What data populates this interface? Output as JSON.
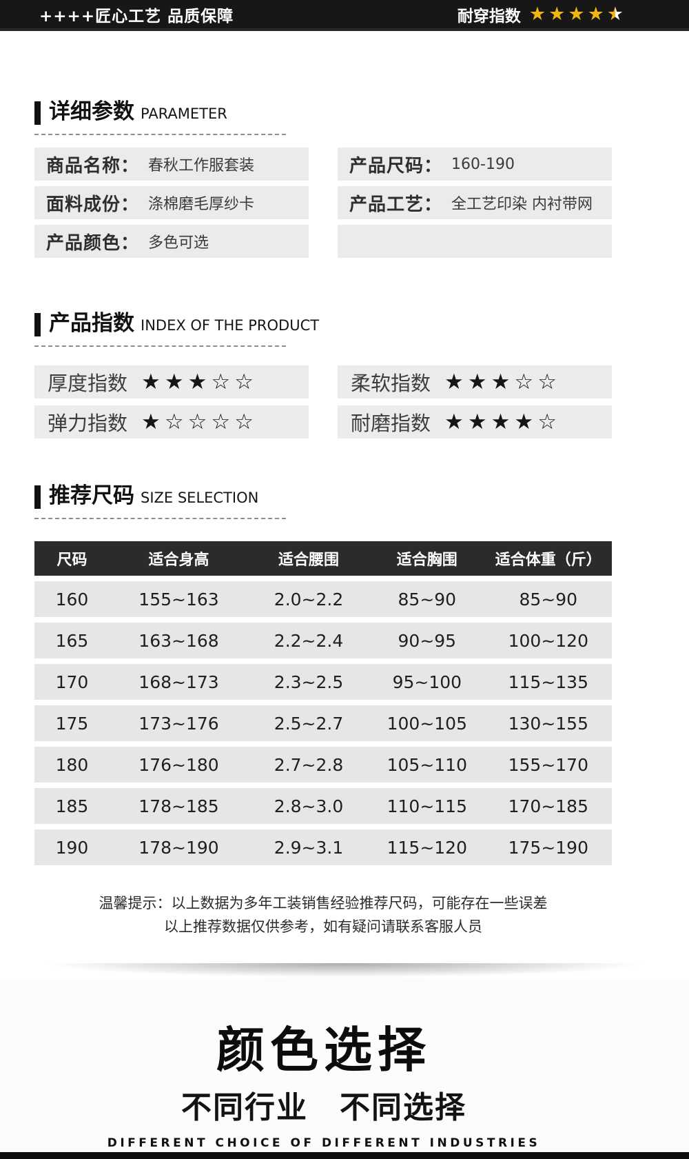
{
  "colors": {
    "star_gold": "#f2b50f",
    "star_black": "#161616",
    "topbar_bg": "#171717",
    "box_gray": "#ebebeb",
    "table_header_bg": "#2b2b2b"
  },
  "topbar": {
    "left_text": "++++匠心工艺 品质保障",
    "right_label": "耐穿指数",
    "rating": 4.5,
    "rating_max": 5
  },
  "sections": {
    "parameter": {
      "title": "详细参数",
      "subtitle": "PARAMETER",
      "fields": [
        {
          "label": "商品名称：",
          "value": "春秋工作服套装"
        },
        {
          "label": "产品尺码：",
          "value": "160-190"
        },
        {
          "label": "面料成份：",
          "value": "涤棉磨毛厚纱卡"
        },
        {
          "label": "产品工艺：",
          "value": "全工艺印染 内衬带网"
        },
        {
          "label": "产品颜色：",
          "value": "多色可选"
        }
      ]
    },
    "index": {
      "title": "产品指数",
      "subtitle": "INDEX OF THE PRODUCT",
      "metrics": [
        {
          "label": "厚度指数",
          "stars": 3,
          "max": 5
        },
        {
          "label": "柔软指数",
          "stars": 3,
          "max": 5
        },
        {
          "label": "弹力指数",
          "stars": 1,
          "max": 5
        },
        {
          "label": "耐磨指数",
          "stars": 4,
          "max": 5
        }
      ]
    },
    "size": {
      "title": "推荐尺码",
      "subtitle": "SIZE SELECTION",
      "table": {
        "headers": [
          "尺码",
          "适合身高",
          "适合腰围",
          "适合胸围",
          "适合体重（斤）"
        ],
        "rows": [
          [
            "160",
            "155~163",
            "2.0~2.2",
            "85~90",
            "85~90"
          ],
          [
            "165",
            "163~168",
            "2.2~2.4",
            "90~95",
            "100~120"
          ],
          [
            "170",
            "168~173",
            "2.3~2.5",
            "95~100",
            "115~135"
          ],
          [
            "175",
            "173~176",
            "2.5~2.7",
            "100~105",
            "130~155"
          ],
          [
            "180",
            "176~180",
            "2.7~2.8",
            "105~110",
            "155~170"
          ],
          [
            "185",
            "178~185",
            "2.8~3.0",
            "110~115",
            "170~185"
          ],
          [
            "190",
            "178~190",
            "2.9~3.1",
            "115~120",
            "175~190"
          ]
        ]
      },
      "note_line1": "温馨提示：以上数据为多年工装销售经验推荐尺码，可能存在一些误差",
      "note_line2": "以上推荐数据仅供参考，如有疑问请联系客服人员"
    },
    "color_select": {
      "title": "颜色选择",
      "subtitle": "不同行业　不同选择",
      "subtitle_en": "DIFFERENT CHOICE OF DIFFERENT INDUSTRIES"
    }
  }
}
